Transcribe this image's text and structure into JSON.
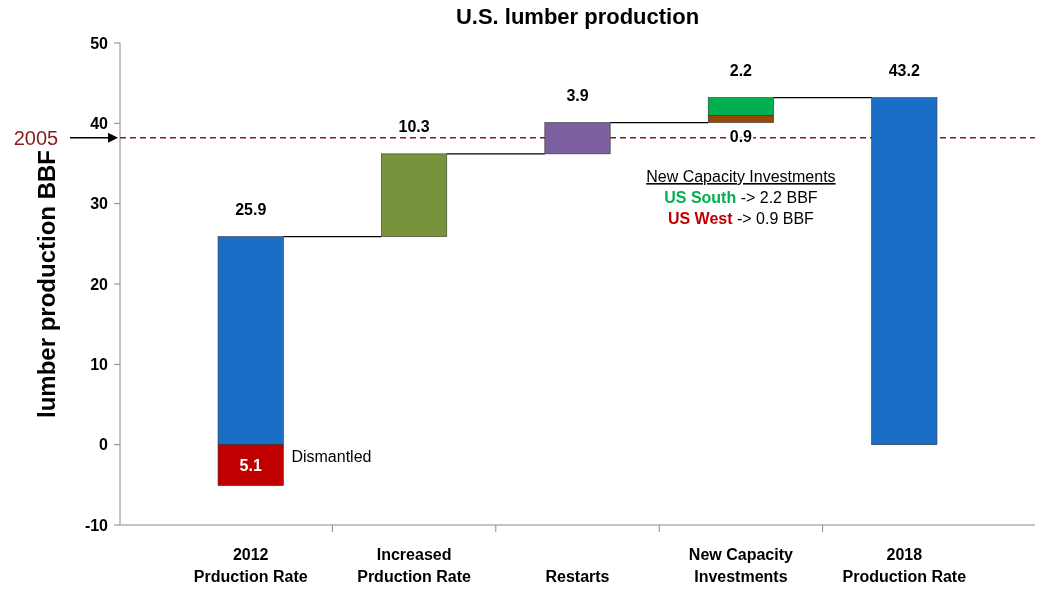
{
  "chart_data": {
    "type": "bar",
    "title": "U.S. lumber production",
    "ylabel": "lumber production BBF",
    "categories": [
      "2012\nPrduction Rate",
      "Increased\nPrduction Rate",
      "Restarts",
      "New Capacity\nInvestments",
      "2018\nProduction Rate"
    ],
    "series": [
      {
        "color": "#1b6ec6",
        "values": [
          25.9,
          null,
          null,
          null,
          43.2
        ],
        "base": [
          0,
          null,
          null,
          null,
          0
        ],
        "value_labels": [
          "25.9",
          null,
          null,
          null,
          "43.2"
        ]
      },
      {
        "color": "#c00000",
        "values": [
          -5.1,
          null,
          null,
          null,
          null
        ],
        "base": [
          0,
          null,
          null,
          null,
          null
        ],
        "value_labels": [
          "5.1",
          null,
          null,
          null,
          null
        ]
      },
      {
        "color": "#77933c",
        "values": [
          null,
          10.3,
          null,
          null,
          null
        ],
        "base": [
          null,
          25.9,
          null,
          null,
          null
        ],
        "value_labels": [
          null,
          "10.3",
          null,
          null,
          null
        ]
      },
      {
        "color": "#7b5f9e",
        "values": [
          null,
          null,
          3.9,
          null,
          null
        ],
        "base": [
          null,
          null,
          36.2,
          null,
          null
        ],
        "value_labels": [
          null,
          null,
          "3.9",
          null,
          null
        ]
      },
      {
        "color": "#974806",
        "values": [
          null,
          null,
          null,
          0.9,
          null
        ],
        "base": [
          null,
          null,
          null,
          40.1,
          null
        ],
        "value_labels": [
          null,
          null,
          null,
          "0.9",
          null
        ]
      },
      {
        "color": "#00b050",
        "values": [
          null,
          null,
          null,
          2.2,
          null
        ],
        "base": [
          null,
          null,
          null,
          41.0,
          null
        ],
        "value_labels": [
          null,
          null,
          null,
          "2.2",
          null
        ]
      }
    ],
    "ylim": [
      -10,
      50
    ],
    "yticks": [
      -10,
      0,
      10,
      20,
      30,
      40,
      50
    ],
    "grid": false,
    "ref_lines": [
      {
        "axis": "y",
        "value": 38.2,
        "color": "#8b1a1a",
        "line_style": "dashed"
      }
    ],
    "annotations": [
      "Dismantled",
      "New Capacity Investments",
      "US South",
      "-> 2.2 BBF",
      "US West",
      "-> 0.9 BBF",
      "2005"
    ]
  }
}
